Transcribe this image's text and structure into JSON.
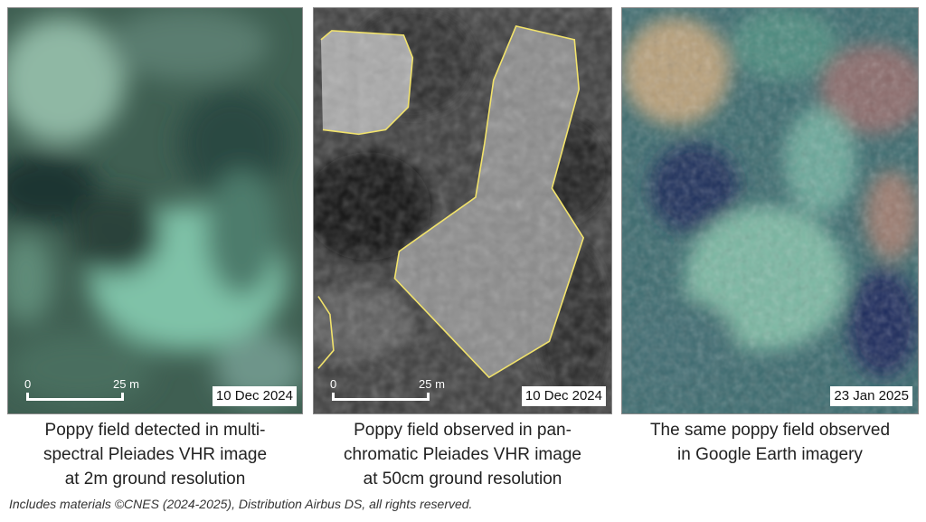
{
  "panels": [
    {
      "date": "10 Dec 2024",
      "scale": {
        "zero": "0",
        "max": "25 m"
      },
      "caption": [
        "Poppy field detected in multi-",
        "spectral Pleiades VHR image",
        "at 2m ground resolution"
      ]
    },
    {
      "date": "10 Dec 2024",
      "scale": {
        "zero": "0",
        "max": "25 m"
      },
      "caption": [
        "Poppy field observed in pan-",
        "chromatic Pleiades VHR image",
        "at 50cm ground resolution"
      ]
    },
    {
      "date": "23 Jan 2025",
      "caption": [
        "The same poppy field observed",
        "in Google Earth imagery"
      ]
    }
  ],
  "credit": "Includes materials ©CNES (2024-2025), Distribution Airbus DS, all rights reserved.",
  "colors": {
    "outline": "#f2e36b",
    "scale_bar": "#ffffff"
  }
}
